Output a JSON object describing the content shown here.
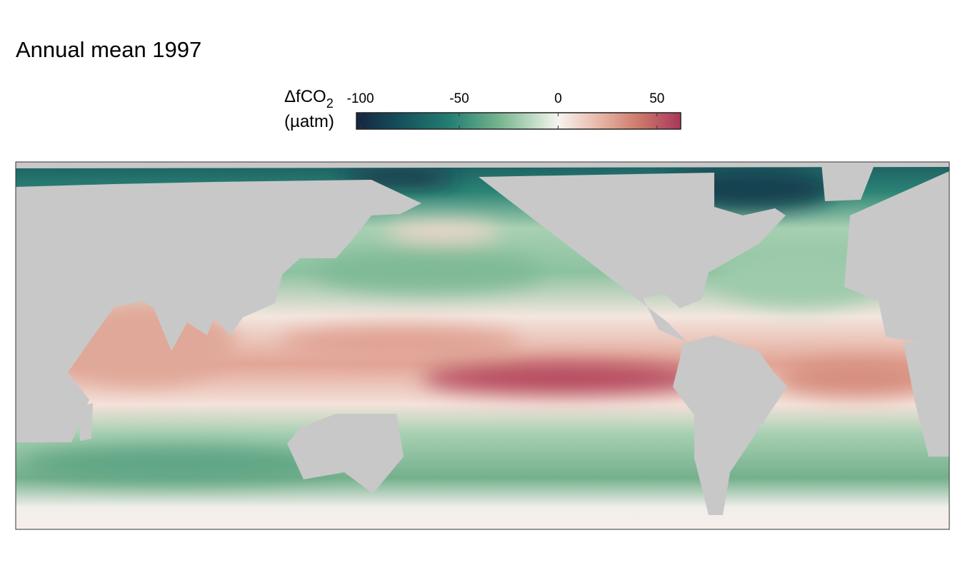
{
  "title": "Annual mean 1997",
  "legend": {
    "title": "ΔfCO",
    "title_subscript": "2",
    "unit": "(µatm)",
    "lim": [
      -102,
      62
    ],
    "ticks": [
      -100,
      -50,
      0,
      50
    ],
    "colorscale": [
      {
        "value": -102,
        "color": "#172540"
      },
      {
        "value": -80,
        "color": "#15505c"
      },
      {
        "value": -55,
        "color": "#237e72"
      },
      {
        "value": -30,
        "color": "#75b48d"
      },
      {
        "value": -10,
        "color": "#c9e1cd"
      },
      {
        "value": 0,
        "color": "#f7f4ef"
      },
      {
        "value": 20,
        "color": "#e9b9aa"
      },
      {
        "value": 40,
        "color": "#cd7c6d"
      },
      {
        "value": 62,
        "color": "#a9375a"
      }
    ]
  }
}
